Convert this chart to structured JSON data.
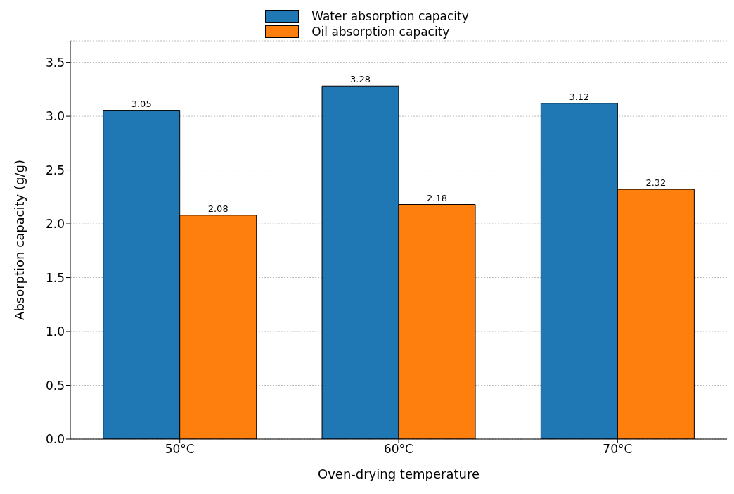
{
  "chart_data": {
    "type": "bar",
    "xlabel": "Oven-drying temperature",
    "ylabel": "Absorption capacity (g/g)",
    "categories": [
      "50°C",
      "60°C",
      "70°C"
    ],
    "series": [
      {
        "name": "Water absorption capacity",
        "color": "#1f77b4",
        "values": [
          3.05,
          3.28,
          3.12
        ]
      },
      {
        "name": "Oil absorption capacity",
        "color": "#ff7f0e",
        "values": [
          2.08,
          2.18,
          2.32
        ]
      }
    ],
    "ylim": [
      0,
      3.7
    ],
    "yticks": [
      {
        "value": 0,
        "label": "0.0"
      },
      0.5,
      {
        "value": 1,
        "label": "1.0"
      },
      1.5,
      {
        "value": 2,
        "label": "2.0"
      },
      2.5,
      {
        "value": 3,
        "label": "3.0"
      },
      3.5
    ],
    "grid": "y",
    "legend": "top",
    "data_labels": true
  }
}
